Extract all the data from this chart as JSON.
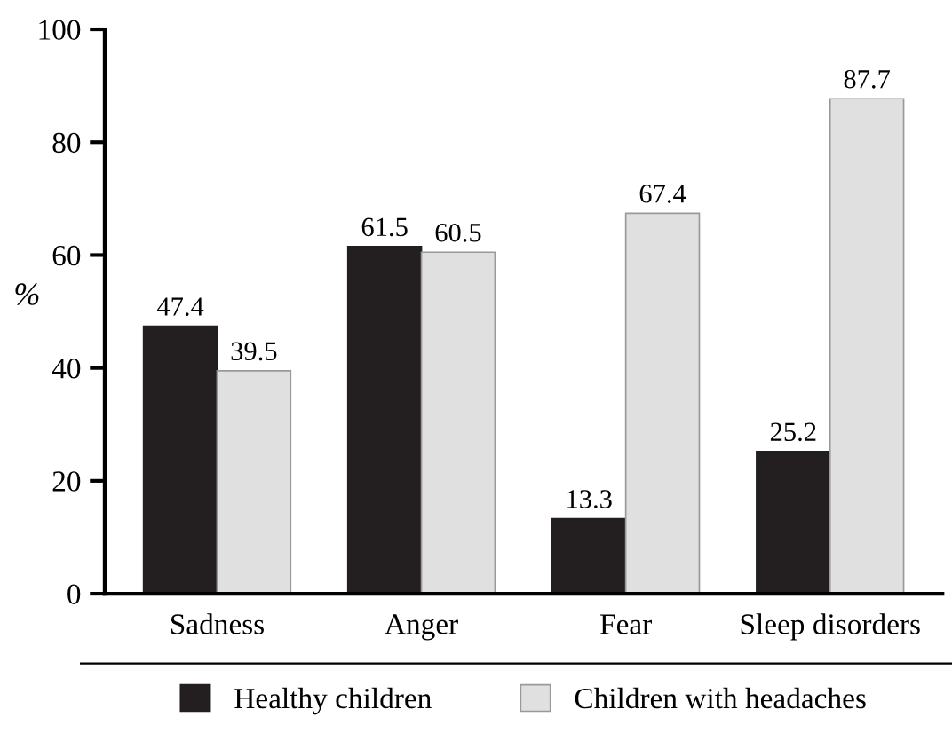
{
  "chart_data": {
    "type": "bar",
    "ylabel": "%",
    "categories": [
      "Sadness",
      "Anger",
      "Fear",
      "Sleep disorders"
    ],
    "series": [
      {
        "name": "Healthy children",
        "color": "#231f20",
        "values": [
          47.4,
          61.5,
          13.3,
          25.2
        ]
      },
      {
        "name": "Children with headaches",
        "color": "#e0e0e0",
        "values": [
          39.5,
          60.5,
          67.4,
          87.7
        ]
      }
    ],
    "ylim": [
      0,
      100
    ],
    "yticks": [
      0,
      20,
      40,
      60,
      80,
      100
    ],
    "data_labels": true,
    "legend": "bottom",
    "grid": false
  }
}
